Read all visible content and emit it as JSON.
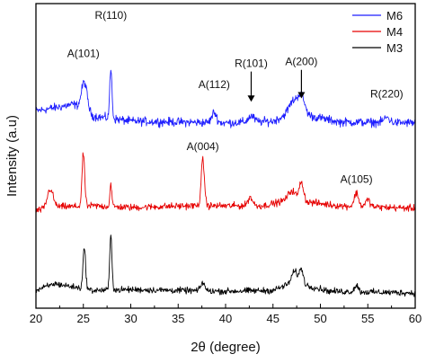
{
  "chart_data": {
    "type": "line",
    "xlabel": "2θ (degree)",
    "ylabel": "Intensity (a.u)",
    "xlim": [
      20,
      60
    ],
    "x_ticks": [
      "20",
      "25",
      "30",
      "35",
      "40",
      "45",
      "50",
      "55",
      "60"
    ],
    "grid": false,
    "legend_position": "top-right",
    "series": [
      {
        "name": "M6",
        "color": "#1f1fff",
        "offset": 2.0,
        "noise": 0.075,
        "baseline": [
          [
            20,
            0.18
          ],
          [
            24,
            0.26
          ],
          [
            26,
            0.12
          ],
          [
            30,
            0.06
          ],
          [
            40,
            0.04
          ],
          [
            45,
            0.06
          ],
          [
            47,
            0.16
          ],
          [
            49,
            0.12
          ],
          [
            52,
            0.05
          ],
          [
            60,
            0.04
          ]
        ],
        "peaks": [
          {
            "x": 25.1,
            "h": 0.34,
            "w": 0.3
          },
          {
            "x": 27.9,
            "h": 0.58,
            "w": 0.12
          },
          {
            "x": 38.8,
            "h": 0.12,
            "w": 0.25
          },
          {
            "x": 42.7,
            "h": 0.07,
            "w": 0.3
          },
          {
            "x": 47.2,
            "h": 0.14,
            "w": 0.5
          },
          {
            "x": 48.0,
            "h": 0.2,
            "w": 0.35
          },
          {
            "x": 57.0,
            "h": 0.06,
            "w": 0.3
          }
        ]
      },
      {
        "name": "M4",
        "color": "#e60000",
        "offset": 1.0,
        "noise": 0.06,
        "baseline": [
          [
            20,
            0.0
          ],
          [
            22,
            0.05
          ],
          [
            24,
            0.05
          ],
          [
            26,
            0.06
          ],
          [
            30,
            0.04
          ],
          [
            36,
            0.06
          ],
          [
            44,
            0.06
          ],
          [
            47,
            0.14
          ],
          [
            49,
            0.1
          ],
          [
            52,
            0.06
          ],
          [
            60,
            0.03
          ]
        ],
        "peaks": [
          {
            "x": 21.5,
            "h": 0.22,
            "w": 0.3
          },
          {
            "x": 25.0,
            "h": 0.62,
            "w": 0.14
          },
          {
            "x": 27.9,
            "h": 0.27,
            "w": 0.1
          },
          {
            "x": 37.6,
            "h": 0.54,
            "w": 0.17
          },
          {
            "x": 42.6,
            "h": 0.1,
            "w": 0.25
          },
          {
            "x": 47.0,
            "h": 0.1,
            "w": 0.4
          },
          {
            "x": 48.0,
            "h": 0.22,
            "w": 0.22
          },
          {
            "x": 53.8,
            "h": 0.16,
            "w": 0.22
          },
          {
            "x": 55.0,
            "h": 0.08,
            "w": 0.25
          }
        ]
      },
      {
        "name": "M3",
        "color": "#000000",
        "offset": 0.0,
        "noise": 0.055,
        "baseline": [
          [
            20,
            0.06
          ],
          [
            22,
            0.14
          ],
          [
            24,
            0.1
          ],
          [
            26,
            0.06
          ],
          [
            30,
            0.07
          ],
          [
            40,
            0.05
          ],
          [
            45,
            0.06
          ],
          [
            47,
            0.15
          ],
          [
            48.5,
            0.12
          ],
          [
            51,
            0.05
          ],
          [
            60,
            0.03
          ]
        ],
        "peaks": [
          {
            "x": 25.1,
            "h": 0.48,
            "w": 0.14
          },
          {
            "x": 27.9,
            "h": 0.64,
            "w": 0.12
          },
          {
            "x": 37.6,
            "h": 0.1,
            "w": 0.2
          },
          {
            "x": 47.3,
            "h": 0.14,
            "w": 0.3
          },
          {
            "x": 48.0,
            "h": 0.18,
            "w": 0.2
          },
          {
            "x": 53.8,
            "h": 0.08,
            "w": 0.2
          }
        ]
      }
    ],
    "annotations": [
      {
        "text": "A(101)",
        "x": 25.0,
        "y": 2.82,
        "arrow": false
      },
      {
        "text": "R(110)",
        "x": 27.9,
        "y": 3.27,
        "arrow": false
      },
      {
        "text": "A(112)",
        "x": 38.8,
        "y": 2.45,
        "arrow": false
      },
      {
        "text": "R(101)",
        "x": 42.7,
        "y": 2.7,
        "arrow": true,
        "arrow_to": 2.29
      },
      {
        "text": "A(200)",
        "x": 48.0,
        "y": 2.72,
        "arrow": true,
        "arrow_to": 2.33
      },
      {
        "text": "R(220)",
        "x": 57.0,
        "y": 2.34,
        "arrow": false
      },
      {
        "text": "A(004)",
        "x": 37.6,
        "y": 1.72,
        "arrow": false
      },
      {
        "text": "A(105)",
        "x": 53.8,
        "y": 1.33,
        "arrow": false
      }
    ]
  }
}
